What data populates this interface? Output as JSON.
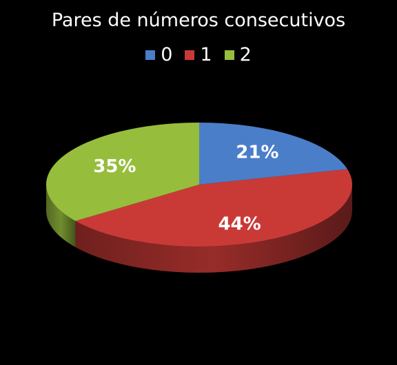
{
  "chart_data": {
    "type": "pie",
    "title": "Pares de números consecutivos",
    "categories": [
      "0",
      "1",
      "2"
    ],
    "values": [
      21,
      44,
      35
    ],
    "value_labels": [
      "21%",
      "44%",
      "35%"
    ],
    "colors": [
      "#4a7ec9",
      "#c93a37",
      "#97bd3d"
    ],
    "legend_position": "top",
    "style": "3d"
  }
}
